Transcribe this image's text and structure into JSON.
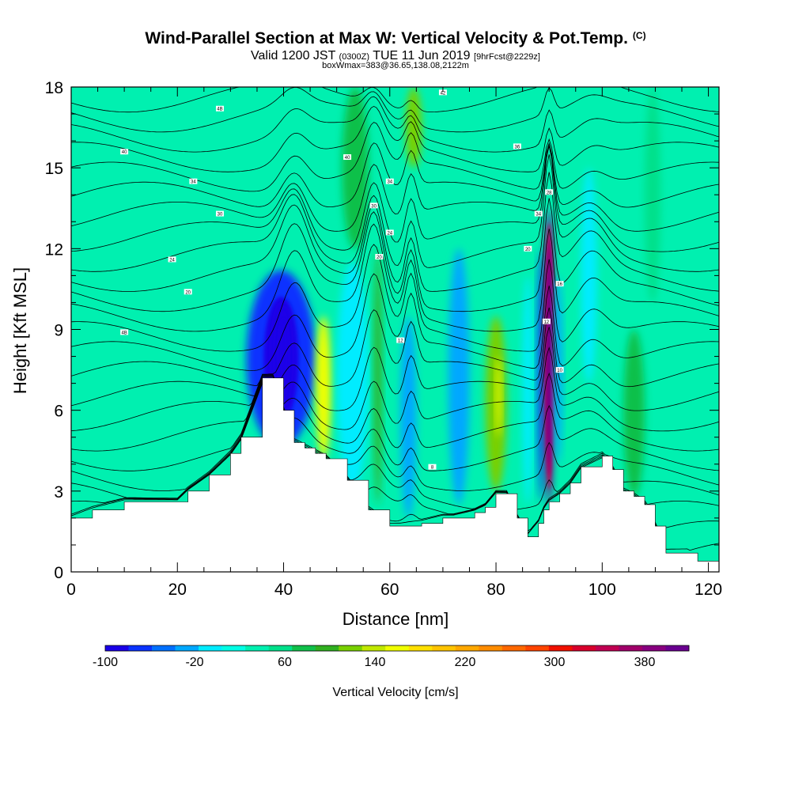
{
  "titles": {
    "main": "Wind-Parallel Section at Max W: Vertical Velocity & Pot.Temp.",
    "copyright": "(C)",
    "valid_prefix": "Valid 1200 JST",
    "valid_z": "(0300Z)",
    "valid_date": "TUE 11 Jun 2019",
    "forecast": "[9hrFcst@2229z]",
    "box": "boxWmax=383@36.65,138.08,2122m"
  },
  "chart_data": {
    "type": "heatmap",
    "xlabel": "Distance [nm]",
    "ylabel": "Height [Kft MSL]",
    "xlim": [
      0,
      122
    ],
    "ylim": [
      0,
      18
    ],
    "xticks": [
      0,
      20,
      40,
      60,
      80,
      100,
      120
    ],
    "yticks": [
      0,
      3,
      6,
      9,
      12,
      15,
      18
    ],
    "terrain": {
      "x": [
        0,
        4,
        10,
        20,
        22,
        26,
        30,
        32,
        36,
        38,
        40,
        42,
        44,
        46,
        48,
        52,
        56,
        60,
        62,
        66,
        70,
        72,
        76,
        78,
        80,
        82,
        84,
        86,
        88,
        89,
        90,
        92,
        94,
        96,
        100,
        102,
        104,
        106,
        108,
        110,
        112,
        114,
        116,
        118,
        122
      ],
      "height": [
        2.0,
        2.3,
        2.6,
        2.6,
        3.0,
        3.6,
        4.4,
        5.0,
        7.2,
        7.2,
        6.0,
        4.8,
        4.6,
        4.4,
        4.2,
        3.4,
        2.3,
        1.7,
        1.7,
        1.8,
        2.0,
        2.0,
        2.2,
        2.4,
        2.9,
        2.9,
        2.0,
        1.3,
        1.8,
        2.3,
        2.6,
        2.9,
        3.3,
        3.9,
        4.3,
        3.8,
        3.0,
        2.8,
        2.5,
        1.7,
        0.7,
        0.7,
        0.7,
        0.4,
        0.4
      ]
    },
    "vertical_velocity_cells": [
      {
        "x": [
          33,
          46
        ],
        "z": [
          4.6,
          11.2
        ],
        "w": -100
      },
      {
        "x": [
          38,
          42
        ],
        "z": [
          6.0,
          10.0
        ],
        "w": -110
      },
      {
        "x": [
          46,
          49
        ],
        "z": [
          4.2,
          9.5
        ],
        "w": 120
      },
      {
        "x": [
          50,
          56
        ],
        "z": [
          3.0,
          11.5
        ],
        "w": -40
      },
      {
        "x": [
          51,
          56
        ],
        "z": [
          12,
          18
        ],
        "w": 40
      },
      {
        "x": [
          57,
          58.5
        ],
        "z": [
          2.5,
          12.0
        ],
        "w": 60
      },
      {
        "x": [
          62,
          65
        ],
        "z": [
          2.0,
          9.5
        ],
        "w": -60
      },
      {
        "x": [
          63,
          66
        ],
        "z": [
          15,
          18
        ],
        "w": 80
      },
      {
        "x": [
          71,
          75
        ],
        "z": [
          2.5,
          12.0
        ],
        "w": -60
      },
      {
        "x": [
          78,
          82
        ],
        "z": [
          3.0,
          9.5
        ],
        "w": 80
      },
      {
        "x": [
          80,
          81
        ],
        "z": [
          5.0,
          8.0
        ],
        "w": 130
      },
      {
        "x": [
          85,
          87
        ],
        "z": [
          2.5,
          11.0
        ],
        "w": -40
      },
      {
        "x": [
          87.8,
          89
        ],
        "z": [
          2.6,
          12.0
        ],
        "w": -90
      },
      {
        "x": [
          89,
          91
        ],
        "z": [
          2.5,
          13.5
        ],
        "w": 383
      },
      {
        "x": [
          91,
          92.5
        ],
        "z": [
          4.0,
          11.0
        ],
        "w": -60
      },
      {
        "x": [
          96,
          99
        ],
        "z": [
          7.0,
          15.0
        ],
        "w": -30
      },
      {
        "x": [
          104,
          108
        ],
        "z": [
          2.8,
          9.0
        ],
        "w": 40
      },
      {
        "x": [
          108,
          111
        ],
        "z": [
          10,
          18
        ],
        "w": 20
      }
    ],
    "theta_contour_labels": [
      {
        "x": 28,
        "z": 17.2,
        "text": "4B"
      },
      {
        "x": 10,
        "z": 15.6,
        "text": "40"
      },
      {
        "x": 23,
        "z": 14.5,
        "text": "34"
      },
      {
        "x": 28,
        "z": 13.3,
        "text": "30"
      },
      {
        "x": 19,
        "z": 11.6,
        "text": "24"
      },
      {
        "x": 22,
        "z": 10.4,
        "text": "20"
      },
      {
        "x": 10,
        "z": 8.9,
        "text": "4B"
      },
      {
        "x": 52,
        "z": 15.4,
        "text": "40"
      },
      {
        "x": 60,
        "z": 14.5,
        "text": "34"
      },
      {
        "x": 57,
        "z": 13.6,
        "text": "30"
      },
      {
        "x": 60,
        "z": 12.6,
        "text": "24"
      },
      {
        "x": 58,
        "z": 11.7,
        "text": "20"
      },
      {
        "x": 62,
        "z": 8.6,
        "text": "12"
      },
      {
        "x": 68,
        "z": 3.9,
        "text": "8"
      },
      {
        "x": 70,
        "z": 17.8,
        "text": "42"
      },
      {
        "x": 84,
        "z": 15.8,
        "text": "36"
      },
      {
        "x": 90,
        "z": 14.1,
        "text": "28"
      },
      {
        "x": 88,
        "z": 13.3,
        "text": "34"
      },
      {
        "x": 86,
        "z": 12.0,
        "text": "20"
      },
      {
        "x": 92,
        "z": 10.7,
        "text": "16"
      },
      {
        "x": 89.5,
        "z": 9.3,
        "text": "12"
      },
      {
        "x": 92,
        "z": 7.5,
        "text": "10"
      }
    ]
  },
  "colorbar": {
    "label": "Vertical Velocity [cm/s]",
    "ticks": [
      "-100",
      "-20",
      "60",
      "140",
      "220",
      "300",
      "380"
    ],
    "colors": [
      "#1a00e8",
      "#0a33ff",
      "#0070ff",
      "#00a8ff",
      "#00ecff",
      "#00ffe5",
      "#00f0b0",
      "#00e08a",
      "#10c04a",
      "#30b020",
      "#78d000",
      "#c0e800",
      "#f0ff00",
      "#ffe000",
      "#ffc400",
      "#ffa800",
      "#ff8c00",
      "#ff6800",
      "#ff4400",
      "#f01000",
      "#d8002c",
      "#c00052",
      "#a0006a",
      "#880080",
      "#6a0090"
    ]
  }
}
